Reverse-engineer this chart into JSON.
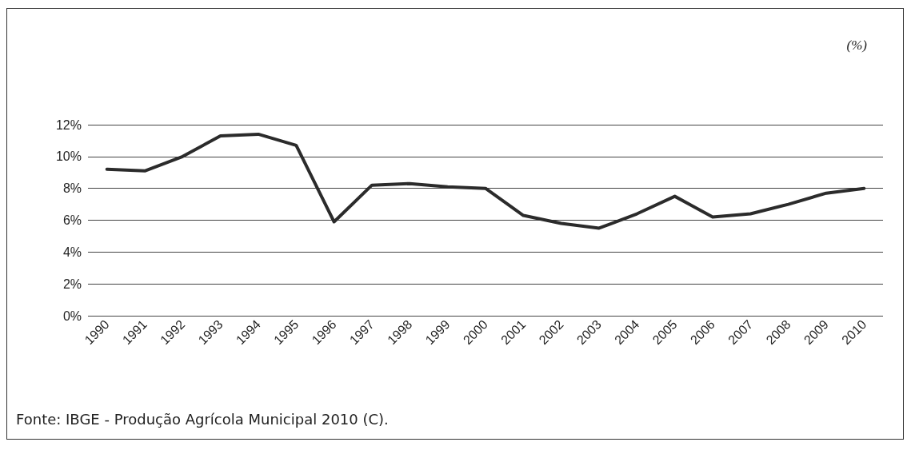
{
  "chart_data": {
    "type": "line",
    "categories": [
      "1990",
      "1991",
      "1992",
      "1993",
      "1994",
      "1995",
      "1996",
      "1997",
      "1998",
      "1999",
      "2000",
      "2001",
      "2002",
      "2003",
      "2004",
      "2005",
      "2006",
      "2007",
      "2008",
      "2009",
      "2010"
    ],
    "series": [
      {
        "color": "#2b2b2b",
        "values": [
          9.2,
          9.1,
          10.0,
          11.3,
          11.4,
          10.7,
          5.9,
          8.2,
          8.3,
          8.1,
          8.0,
          6.3,
          5.8,
          5.5,
          6.4,
          7.5,
          6.2,
          6.4,
          7.0,
          7.7,
          8.0
        ]
      }
    ],
    "ylim": [
      0,
      12
    ],
    "yticks": [
      {
        "value": 0,
        "label": "0%"
      },
      {
        "value": 2,
        "label": "2%"
      },
      {
        "value": 4,
        "label": "4%"
      },
      {
        "value": 6,
        "label": "6%"
      },
      {
        "value": 8,
        "label": "8%"
      },
      {
        "value": 10,
        "label": "10%"
      },
      {
        "value": 12,
        "label": "12%"
      }
    ],
    "grid": "y",
    "marker": "none",
    "line_style": "solid",
    "annotations": [
      "(%)",
      "Fonte: IBGE - Produção Agrícola Municipal 2010 (C)."
    ]
  }
}
